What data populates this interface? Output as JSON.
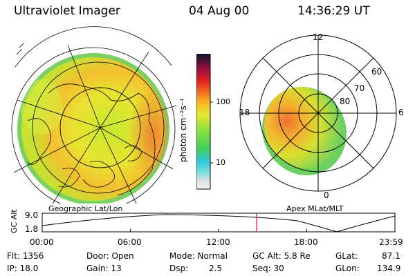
{
  "header": {
    "instrument": "Ultraviolet Imager",
    "date": "04 Aug 00",
    "time": "14:36:29 UT"
  },
  "left_panel": {
    "caption": "Geographic Lat/Lon"
  },
  "colorbar": {
    "unit_label": "photon cm⁻²s⁻¹",
    "ticks": [
      "100",
      "10"
    ]
  },
  "right_panel": {
    "caption": "Apex MLat/MLT",
    "mlt_labels": [
      "12",
      "18",
      "6",
      "0"
    ],
    "lat_labels": [
      "60",
      "70",
      "80"
    ]
  },
  "timeline": {
    "axis_title": "GC Alt",
    "y_ticks": [
      "9.0",
      "1.8"
    ],
    "x_ticks": [
      "00:00",
      "06:00",
      "12:00",
      "18:00",
      "23:59"
    ],
    "current_time_fraction": 0.608
  },
  "info": {
    "flt": "Flt: 1356",
    "ip": "IP: 18.0",
    "door": "Door: Open",
    "gain": "Gain: 13",
    "mode": "Mode: Normal",
    "dsp": "Dsp:",
    "dsp_val": "2.5",
    "gc_alt": "GC Alt: 5.8 Re",
    "seq": "Seq: 30",
    "glat": "GLat:",
    "glat_val": "87.1",
    "glon": "GLon:",
    "glon_val": "134.9"
  }
}
